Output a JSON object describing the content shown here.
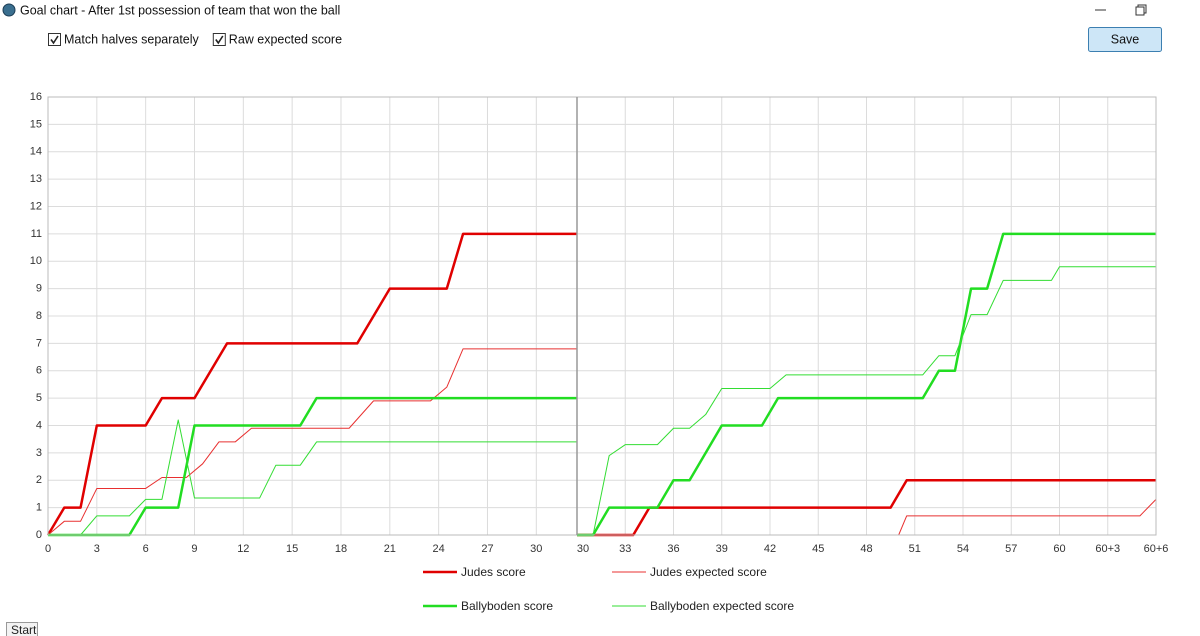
{
  "window": {
    "title": "Goal chart - After 1st possession of team that won the ball"
  },
  "options": [
    {
      "label": "Match halves separately",
      "checked": true
    },
    {
      "label": "Raw expected score",
      "checked": true
    }
  ],
  "buttons": {
    "save": "Save"
  },
  "taskbar": {
    "start": "Start"
  },
  "chart_data": {
    "type": "line",
    "ylim": [
      0,
      16
    ],
    "yticks": [
      0,
      1,
      2,
      3,
      4,
      5,
      6,
      7,
      8,
      9,
      10,
      11,
      12,
      13,
      14,
      15,
      16
    ],
    "grid": true,
    "series": [
      {
        "name": "Judes score",
        "color": "#e00000",
        "width": 2.5
      },
      {
        "name": "Judes expected score",
        "color": "#e83030",
        "width": 1
      },
      {
        "name": "Ballyboden score",
        "color": "#22dd22",
        "width": 2.5
      },
      {
        "name": "Ballyboden expected score",
        "color": "#33dd33",
        "width": 1
      }
    ],
    "panels": [
      {
        "xlim": [
          0,
          32.5
        ],
        "xticks": [
          0,
          3,
          6,
          9,
          12,
          15,
          18,
          21,
          24,
          27,
          30
        ],
        "series": [
          {
            "x": [
              0,
              1,
              2,
              3,
              6,
              7,
              9,
              11,
              19,
              21,
              24.5,
              25.5,
              32.5
            ],
            "values": [
              0,
              1,
              1,
              4,
              4,
              5,
              5,
              7,
              7,
              9,
              9,
              11,
              11
            ]
          },
          {
            "x": [
              0,
              1,
              2,
              3,
              6,
              7,
              8.5,
              9.5,
              10.5,
              11.5,
              12.5,
              18.5,
              20,
              23.5,
              24.5,
              25.5,
              32.5
            ],
            "values": [
              0,
              0.5,
              0.5,
              1.7,
              1.7,
              2.1,
              2.1,
              2.6,
              3.4,
              3.4,
              3.9,
              3.9,
              4.9,
              4.9,
              5.4,
              6.8,
              6.8
            ]
          },
          {
            "x": [
              0,
              5,
              6,
              8,
              9,
              15.5,
              16.5,
              32.5
            ],
            "values": [
              0,
              0,
              1,
              1,
              4,
              4,
              5,
              5
            ]
          },
          {
            "x": [
              0,
              2,
              3,
              5,
              6,
              7,
              8,
              9,
              13,
              14,
              15.5,
              16.5,
              32.5
            ],
            "values": [
              0,
              0,
              0.7,
              0.7,
              1.3,
              1.3,
              4.2,
              1.35,
              1.35,
              2.55,
              2.55,
              3.4,
              3.4
            ]
          }
        ]
      },
      {
        "xlim": [
          30,
          66
        ],
        "xticks": [
          30,
          33,
          36,
          39,
          42,
          45,
          48,
          51,
          54,
          57,
          60,
          {
            "value": 63,
            "label": "60+3"
          },
          {
            "value": 66,
            "label": "60+6"
          }
        ],
        "series": [
          {
            "x": [
              30,
              33.5,
              34.5,
              49.5,
              50.5,
              66
            ],
            "values": [
              0,
              0,
              1,
              1,
              2,
              2
            ]
          },
          {
            "x": [
              30,
              50,
              50.5,
              65,
              66
            ],
            "values": [
              0,
              0,
              0.7,
              0.7,
              1.3
            ]
          },
          {
            "x": [
              30,
              31,
              32,
              35,
              36,
              37,
              39,
              41.5,
              42.5,
              51.5,
              52.5,
              53.5,
              54.5,
              55.5,
              56.5,
              66
            ],
            "values": [
              0,
              0,
              1,
              1,
              2,
              2,
              4,
              4,
              5,
              5,
              6,
              6,
              9,
              9,
              11,
              11
            ]
          },
          {
            "x": [
              30,
              31,
              32,
              33,
              35,
              36,
              37,
              38,
              39,
              42,
              43,
              51.5,
              52.5,
              53.5,
              54.5,
              55.5,
              56.5,
              59.5,
              60,
              66
            ],
            "values": [
              0,
              0,
              2.9,
              3.3,
              3.3,
              3.9,
              3.9,
              4.4,
              5.35,
              5.35,
              5.85,
              5.85,
              6.55,
              6.55,
              8.05,
              8.05,
              9.3,
              9.3,
              9.8,
              9.8
            ]
          }
        ]
      }
    ]
  }
}
